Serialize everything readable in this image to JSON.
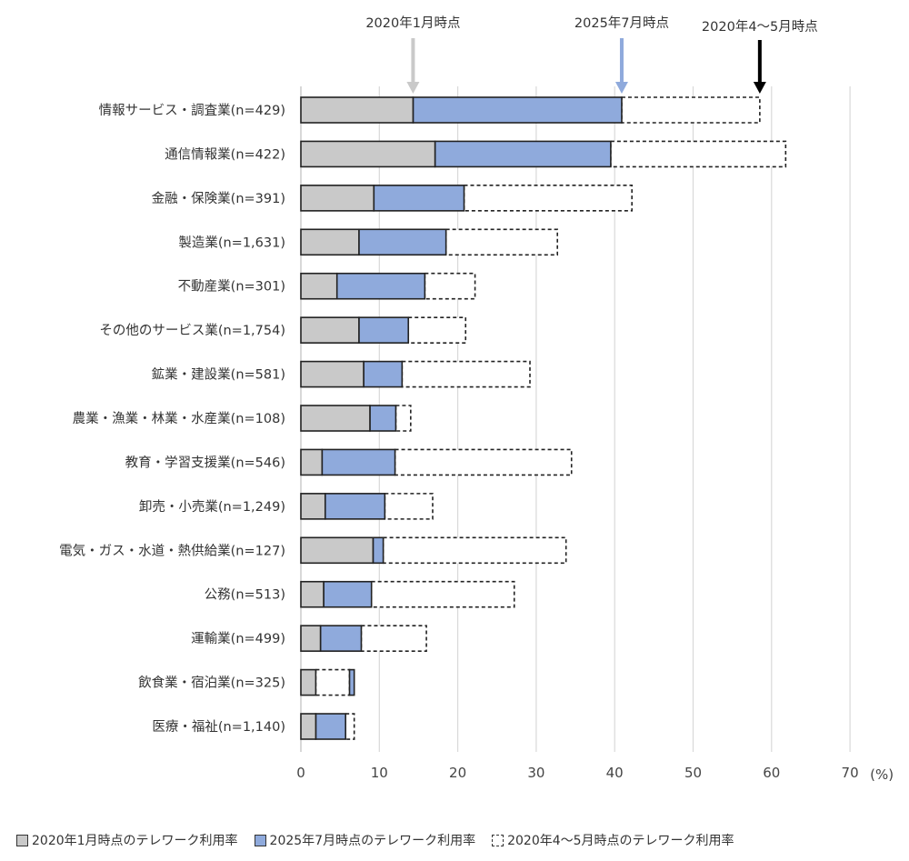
{
  "chart_data": {
    "type": "bar",
    "orientation": "horizontal",
    "categories": [
      "情報サービス・調査業(n=429)",
      "通信情報業(n=422)",
      "金融・保険業(n=391)",
      "製造業(n=1,631)",
      "不動産業(n=301)",
      "その他のサービス業(n=1,754)",
      "鉱業・建設業(n=581)",
      "農業・漁業・林業・水産業(n=108)",
      "教育・学習支援業(n=546)",
      "卸売・小売業(n=1,249)",
      "電気・ガス・水道・熱供給業(n=127)",
      "公務(n=513)",
      "運輸業(n=499)",
      "飲食業・宿泊業(n=325)",
      "医療・福祉(n=1,140)"
    ],
    "series": [
      {
        "name": "2020年1月時点のテレワーク利用率",
        "color": "#c9c9c9",
        "values": [
          14.3,
          17.1,
          9.3,
          7.4,
          4.6,
          7.4,
          8.0,
          8.8,
          2.7,
          3.1,
          9.2,
          2.9,
          2.5,
          1.9,
          1.9
        ]
      },
      {
        "name": "2025年7月時点のテレワーク利用率",
        "color": "#8faadc",
        "values": [
          40.9,
          39.5,
          20.8,
          18.5,
          15.8,
          13.7,
          12.9,
          12.1,
          12.0,
          10.7,
          10.5,
          9.0,
          7.7,
          6.8,
          5.7
        ]
      },
      {
        "name": "2020年4～5月時点のテレワーク利用率",
        "color": "#ffffff",
        "style": "dashed",
        "values": [
          58.5,
          61.8,
          42.2,
          32.7,
          22.2,
          21.0,
          29.2,
          14.0,
          34.5,
          16.8,
          33.8,
          27.2,
          16.0,
          6.2,
          6.8
        ]
      }
    ],
    "annotations": [
      {
        "text": "2020年1月時点",
        "color": "#c9c9c9",
        "series": 0
      },
      {
        "text": "2025年7月時点",
        "color": "#8faadc",
        "series": 1
      },
      {
        "text": "2020年4～5月時点",
        "color": "#000000",
        "series": 2
      }
    ],
    "xlim": [
      0,
      70
    ],
    "xticks": [
      "0",
      "10",
      "20",
      "30",
      "40",
      "50",
      "60",
      "70"
    ],
    "xunit": "(%)",
    "grid": "vertical",
    "legend": "bottom"
  }
}
